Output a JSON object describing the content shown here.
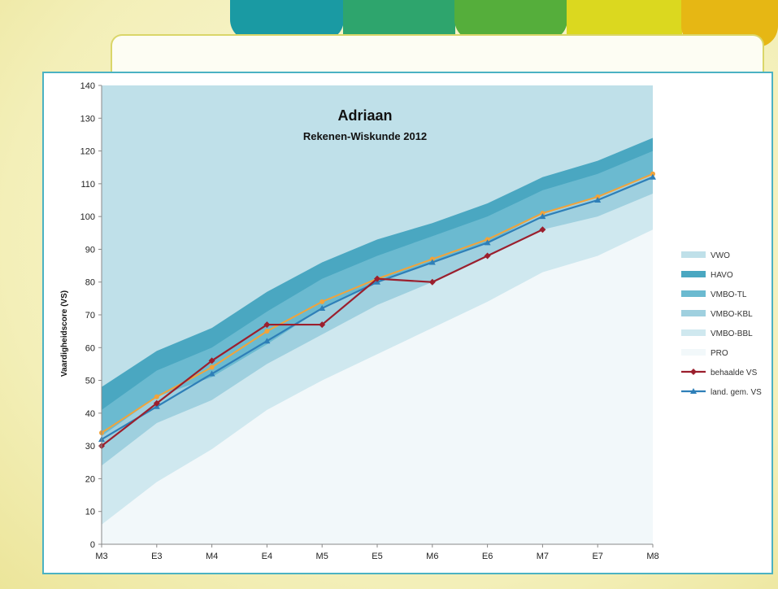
{
  "colors": {
    "background": "#f3efb8",
    "tabs": [
      "#1a9aa3",
      "#2ea56d",
      "#55ae3b",
      "#dbd81f",
      "#e6b714"
    ],
    "frame_border": "#4bb2c3",
    "VWO": "#bfe0e9",
    "HAVO": "#4aa7c1",
    "VMBO-TL": "#6bbad0",
    "VMBO-KBL": "#9fd0df",
    "VMBO-BBL": "#cfe8ef",
    "PRO": "#f2f8fa",
    "behaalde_vs": "#9b1f2d",
    "land_gem_vs": "#2e7fb8",
    "orange_line": "#f2a33a"
  },
  "chart_data": {
    "type": "area",
    "title": "Adriaan",
    "subtitle": "Rekenen-Wiskunde 2012",
    "xlabel": "",
    "ylabel": "Vaardigheidscore (VS)",
    "ylim": [
      0,
      140
    ],
    "yticks": [
      0,
      10,
      20,
      30,
      40,
      50,
      60,
      70,
      80,
      90,
      100,
      110,
      120,
      130,
      140
    ],
    "categories": [
      "M3",
      "E3",
      "M4",
      "E4",
      "M5",
      "E5",
      "M6",
      "E6",
      "M7",
      "E7",
      "M8"
    ],
    "grid": false,
    "legend_position": "right",
    "bands": [
      {
        "name": "VWO",
        "upper": [
          140,
          140,
          140,
          140,
          140,
          140,
          140,
          140,
          140,
          140,
          140
        ]
      },
      {
        "name": "HAVO",
        "upper": [
          48,
          59,
          66,
          77,
          86,
          93,
          98,
          104,
          112,
          117,
          124
        ]
      },
      {
        "name": "VMBO-TL",
        "upper": [
          41,
          53,
          60,
          71,
          81,
          88,
          94,
          100,
          108,
          113,
          120
        ]
      },
      {
        "name": "VMBO-KBL",
        "upper": [
          33,
          45,
          51,
          61,
          72,
          80,
          86,
          92,
          101,
          106,
          113
        ]
      },
      {
        "name": "VMBO-BBL",
        "upper": [
          24,
          37,
          44,
          55,
          64,
          73,
          80,
          88,
          96,
          100,
          107
        ]
      },
      {
        "name": "PRO",
        "upper": [
          6,
          19,
          29,
          41,
          50,
          58,
          66,
          74,
          83,
          88,
          96
        ]
      }
    ],
    "lines": [
      {
        "name": "behaalde VS",
        "x": [
          "M3",
          "E3",
          "M4",
          "E4",
          "M5",
          "E5",
          "M6",
          "E6",
          "M7"
        ],
        "values": [
          30,
          43,
          56,
          67,
          67,
          81,
          80,
          88,
          96
        ],
        "marker": "diamond"
      },
      {
        "name": "land. gem. VS",
        "x": [
          "M3",
          "E3",
          "M4",
          "E4",
          "M5",
          "E5",
          "M6",
          "E6",
          "M7",
          "E7",
          "M8"
        ],
        "values": [
          32,
          42,
          52,
          62,
          72,
          80,
          86,
          92,
          100,
          105,
          112
        ],
        "marker": "triangle"
      },
      {
        "x": [
          "M3",
          "E3",
          "M4",
          "E4",
          "M5",
          "E5",
          "M6",
          "E6",
          "M7",
          "E7",
          "M8"
        ],
        "values": [
          34,
          45,
          54,
          65,
          74,
          81,
          87,
          93,
          101,
          106,
          113
        ],
        "marker": "dot"
      }
    ],
    "legend": [
      "VWO",
      "HAVO",
      "VMBO-TL",
      "VMBO-KBL",
      "VMBO-BBL",
      "PRO",
      "behaalde VS",
      "land. gem. VS"
    ]
  }
}
